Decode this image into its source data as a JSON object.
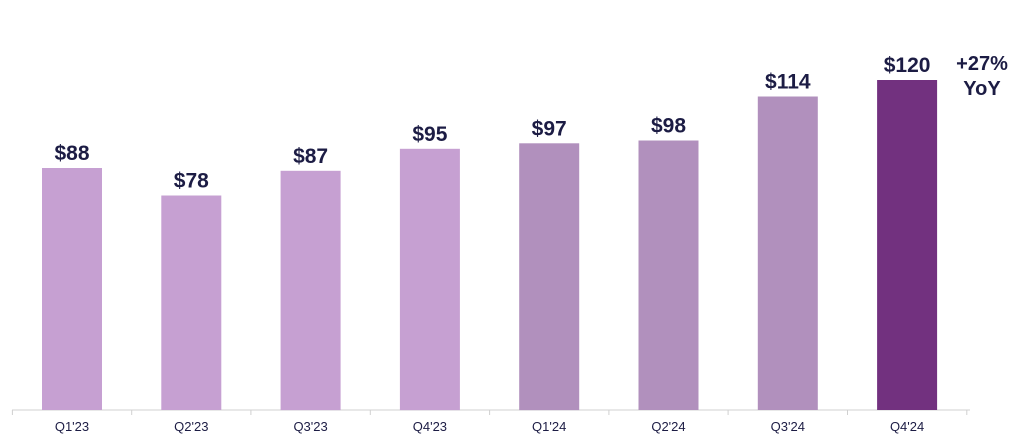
{
  "chart_data": {
    "type": "bar",
    "categories": [
      "Q1'23",
      "Q2'23",
      "Q3'23",
      "Q4'23",
      "Q1'24",
      "Q2'24",
      "Q3'24",
      "Q4'24"
    ],
    "values": [
      88,
      78,
      87,
      95,
      97,
      98,
      114,
      120
    ],
    "value_labels": [
      "$88",
      "$78",
      "$87",
      "$95",
      "$97",
      "$98",
      "$114",
      "$120"
    ],
    "bar_colors": [
      "#c6a0d2",
      "#c6a0d2",
      "#c6a0d2",
      "#c6a0d2",
      "#b190bd",
      "#b190bd",
      "#b190bd",
      "#72317f"
    ],
    "title": "",
    "xlabel": "",
    "ylabel": "",
    "ylim": [
      0,
      120
    ],
    "grid": false,
    "annotation": {
      "line1": "+27%",
      "line2": "YoY"
    }
  }
}
